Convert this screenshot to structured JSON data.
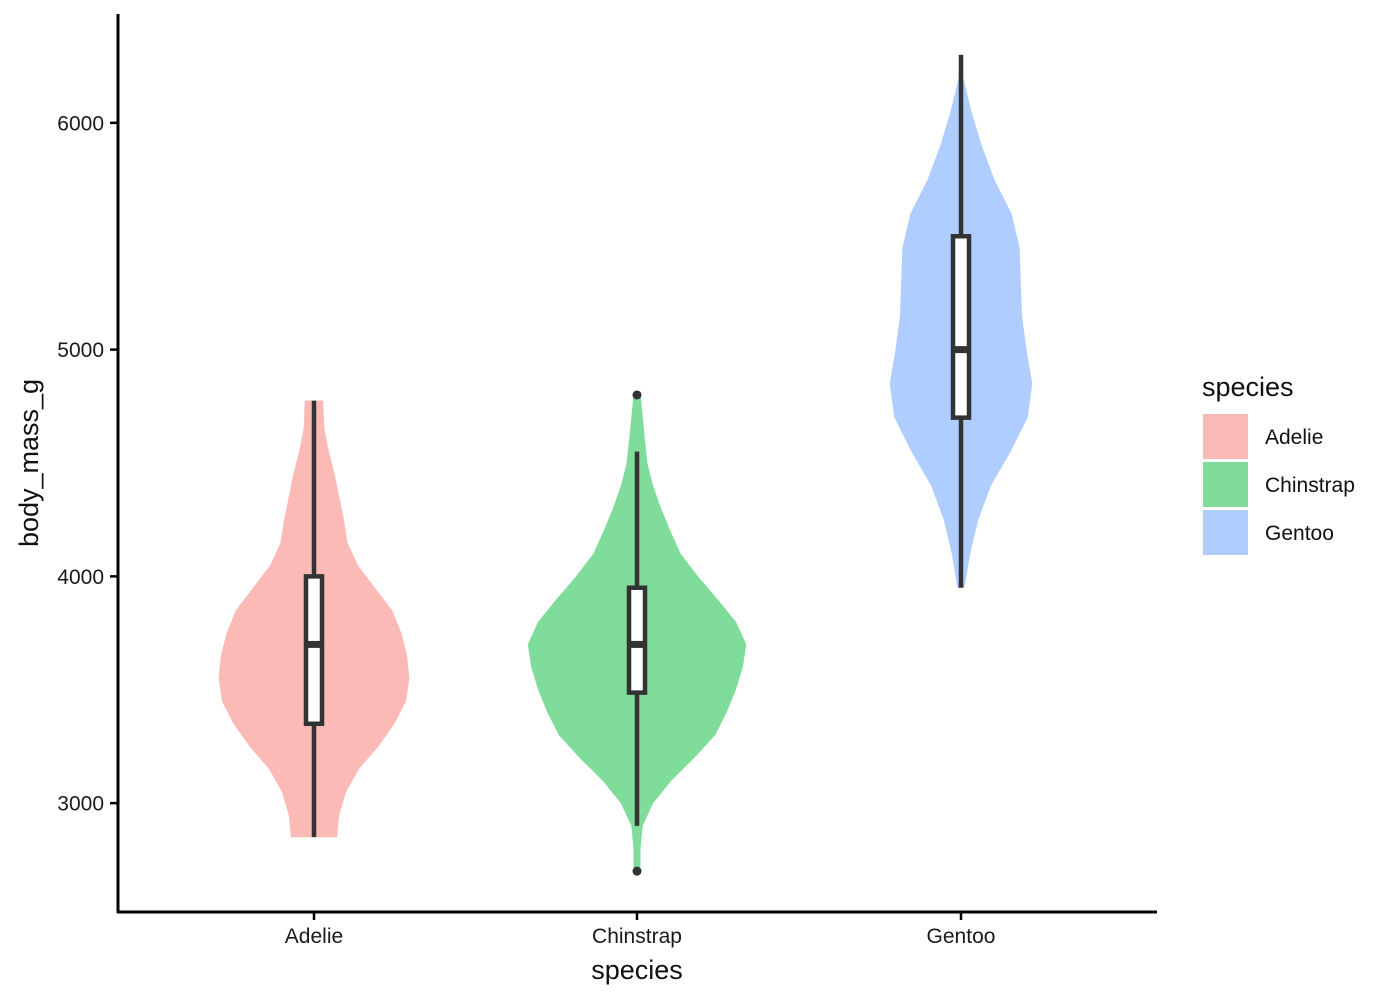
{
  "chart_data": {
    "type": "violin",
    "title": "",
    "xlabel": "species",
    "ylabel": "body_mass_g",
    "categories": [
      "Adelie",
      "Chinstrap",
      "Gentoo"
    ],
    "ylim": [
      2520,
      6480
    ],
    "yticks": [
      3000,
      4000,
      5000,
      6000
    ],
    "grid": false,
    "legend": {
      "title": "species",
      "position": "right",
      "entries": [
        "Adelie",
        "Chinstrap",
        "Gentoo"
      ]
    },
    "colors": {
      "Adelie": "#F8766D",
      "Chinstrap": "#00BA38",
      "Gentoo": "#619CFF",
      "fill_alpha": 0.5,
      "box_stroke": "#333333",
      "box_fill": "#ffffff",
      "axis": "#000000"
    },
    "series": [
      {
        "name": "Adelie",
        "box": {
          "min": 2850,
          "q1": 3350,
          "median": 3700,
          "q3": 4000,
          "max": 4775,
          "outliers": []
        },
        "density": [
          [
            2850,
            0.2
          ],
          [
            2950,
            0.22
          ],
          [
            3050,
            0.28
          ],
          [
            3150,
            0.39
          ],
          [
            3250,
            0.56
          ],
          [
            3350,
            0.7
          ],
          [
            3450,
            0.8
          ],
          [
            3550,
            0.83
          ],
          [
            3650,
            0.81
          ],
          [
            3750,
            0.76
          ],
          [
            3850,
            0.68
          ],
          [
            3950,
            0.53
          ],
          [
            4050,
            0.38
          ],
          [
            4150,
            0.29
          ],
          [
            4250,
            0.26
          ],
          [
            4350,
            0.22
          ],
          [
            4450,
            0.18
          ],
          [
            4550,
            0.13
          ],
          [
            4650,
            0.09
          ],
          [
            4775,
            0.08
          ]
        ]
      },
      {
        "name": "Chinstrap",
        "box": {
          "min": 2900,
          "q1": 3487.5,
          "median": 3700,
          "q3": 3950,
          "max": 4550,
          "outliers": [
            2700,
            4800
          ]
        },
        "density": [
          [
            2700,
            0.03
          ],
          [
            2800,
            0.03
          ],
          [
            2900,
            0.05
          ],
          [
            3000,
            0.14
          ],
          [
            3100,
            0.3
          ],
          [
            3200,
            0.5
          ],
          [
            3300,
            0.68
          ],
          [
            3400,
            0.78
          ],
          [
            3500,
            0.86
          ],
          [
            3600,
            0.92
          ],
          [
            3700,
            0.95
          ],
          [
            3800,
            0.86
          ],
          [
            3900,
            0.7
          ],
          [
            4000,
            0.53
          ],
          [
            4100,
            0.38
          ],
          [
            4200,
            0.29
          ],
          [
            4300,
            0.21
          ],
          [
            4400,
            0.14
          ],
          [
            4500,
            0.09
          ],
          [
            4600,
            0.07
          ],
          [
            4700,
            0.05
          ],
          [
            4800,
            0.03
          ]
        ]
      },
      {
        "name": "Gentoo",
        "box": {
          "min": 3950,
          "q1": 4700,
          "median": 5000,
          "q3": 5500,
          "max": 6300,
          "outliers": []
        },
        "density": [
          [
            3950,
            0.03
          ],
          [
            4100,
            0.08
          ],
          [
            4250,
            0.15
          ],
          [
            4400,
            0.26
          ],
          [
            4550,
            0.43
          ],
          [
            4700,
            0.58
          ],
          [
            4850,
            0.62
          ],
          [
            5000,
            0.57
          ],
          [
            5150,
            0.53
          ],
          [
            5300,
            0.52
          ],
          [
            5450,
            0.51
          ],
          [
            5600,
            0.44
          ],
          [
            5750,
            0.29
          ],
          [
            5900,
            0.18
          ],
          [
            6050,
            0.09
          ],
          [
            6200,
            0.02
          ],
          [
            6300,
            0.02
          ]
        ]
      }
    ]
  }
}
